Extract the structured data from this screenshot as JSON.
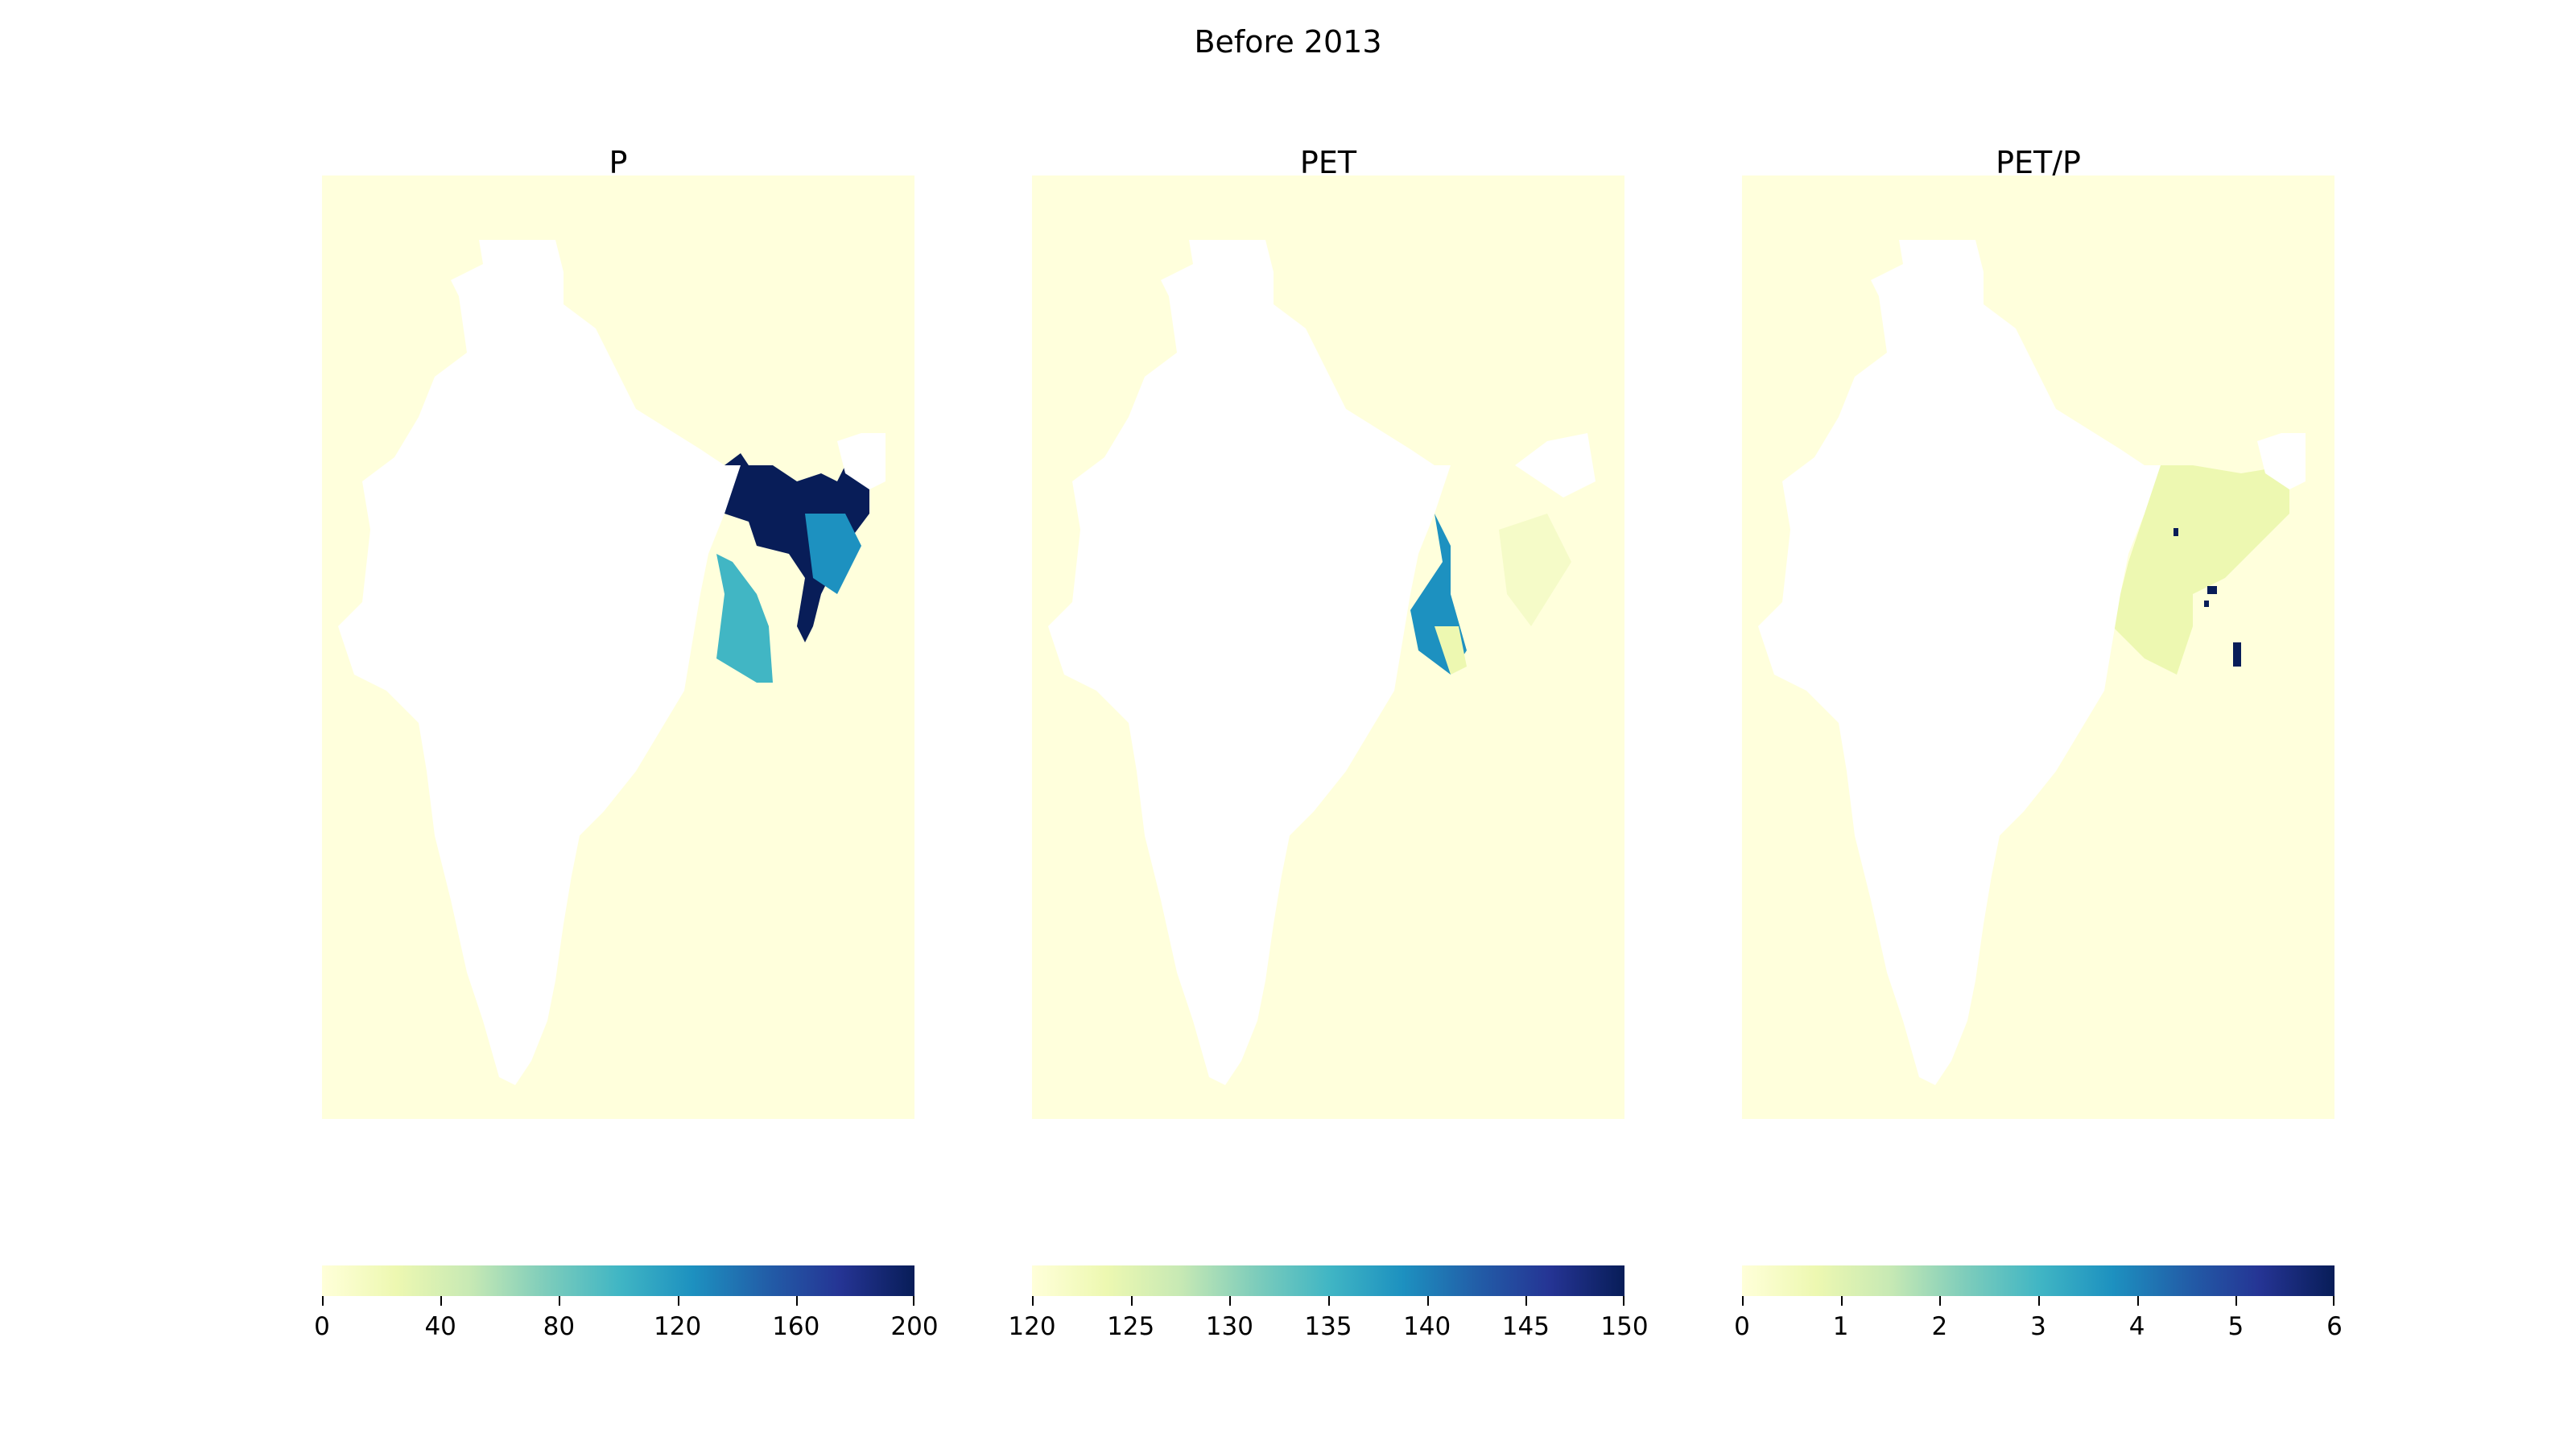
{
  "figure": {
    "title": "Before 2013"
  },
  "colormap": {
    "name": "YlGnBu",
    "stops": [
      "#ffffd9",
      "#edf8b1",
      "#c7e9b4",
      "#7fcdbb",
      "#41b6c4",
      "#1d91c0",
      "#225ea8",
      "#253494",
      "#081d58"
    ]
  },
  "chart_data": [
    {
      "type": "heatmap",
      "title": "P",
      "colorbar": {
        "min": 0,
        "max": 200,
        "ticks": [
          "0",
          "40",
          "80",
          "120",
          "160",
          "200"
        ]
      },
      "background_value": 0,
      "shaded_region": "eastern India / Bangladesh region with high values (up to ~200)"
    },
    {
      "type": "heatmap",
      "title": "PET",
      "colorbar": {
        "min": 120,
        "max": 150,
        "ticks": [
          "120",
          "125",
          "130",
          "135",
          "140",
          "145",
          "150"
        ]
      },
      "background_value": 120,
      "shaded_region": "eastern coast with values ~130–145"
    },
    {
      "type": "heatmap",
      "title": "PET/P",
      "colorbar": {
        "min": 0,
        "max": 6,
        "ticks": [
          "0",
          "1",
          "2",
          "3",
          "4",
          "5",
          "6"
        ]
      },
      "background_value": 0,
      "shaded_region": "eastern region with low values (~1) and a few cells near 6"
    }
  ]
}
